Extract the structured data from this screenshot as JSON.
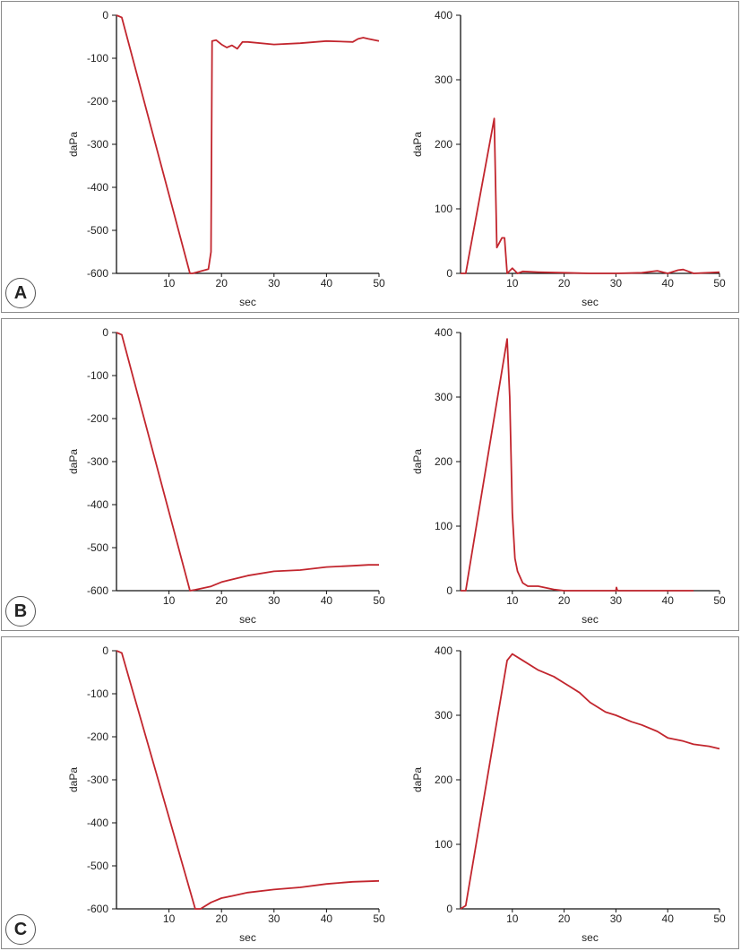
{
  "panels": [
    {
      "id": "a",
      "letter": "A"
    },
    {
      "id": "b",
      "letter": "B"
    },
    {
      "id": "c",
      "letter": "C"
    }
  ],
  "chart_data": [
    {
      "panel": "A",
      "side": "left",
      "type": "line",
      "xlabel": "sec",
      "ylabel": "daPa",
      "xlim": [
        0,
        50
      ],
      "ylim": [
        -600,
        0
      ],
      "xticks": [
        10,
        20,
        30,
        40,
        50
      ],
      "yticks": [
        0,
        -100,
        -200,
        -300,
        -400,
        -500,
        -600
      ],
      "x": [
        0,
        1,
        14,
        14.5,
        17.5,
        18,
        18.2,
        19,
        20,
        21,
        22,
        23,
        24,
        25,
        30,
        35,
        40,
        45,
        46,
        47,
        48,
        50
      ],
      "y": [
        0,
        -5,
        -600,
        -600,
        -590,
        -550,
        -60,
        -58,
        -68,
        -75,
        -70,
        -78,
        -62,
        -62,
        -68,
        -65,
        -60,
        -62,
        -55,
        -52,
        -55,
        -60
      ]
    },
    {
      "panel": "A",
      "side": "right",
      "type": "line",
      "xlabel": "sec",
      "ylabel": "daPa",
      "xlim": [
        0,
        50
      ],
      "ylim": [
        0,
        400
      ],
      "xticks": [
        10,
        20,
        30,
        40,
        50
      ],
      "yticks": [
        0,
        100,
        200,
        300,
        400
      ],
      "x": [
        0,
        1,
        6.5,
        7,
        8,
        8.5,
        9,
        10,
        11,
        12,
        15,
        20,
        25,
        30,
        35,
        38,
        40,
        42,
        43,
        44,
        45,
        50
      ],
      "y": [
        0,
        0,
        240,
        40,
        55,
        55,
        0,
        8,
        0,
        3,
        2,
        1,
        0,
        0,
        1,
        4,
        0,
        5,
        6,
        3,
        0,
        2
      ]
    },
    {
      "panel": "B",
      "side": "left",
      "type": "line",
      "xlabel": "sec",
      "ylabel": "daPa",
      "xlim": [
        0,
        50
      ],
      "ylim": [
        -600,
        0
      ],
      "xticks": [
        10,
        20,
        30,
        40,
        50
      ],
      "yticks": [
        0,
        -100,
        -200,
        -300,
        -400,
        -500,
        -600
      ],
      "x": [
        0,
        1,
        14,
        15,
        18,
        20,
        25,
        30,
        35,
        40,
        45,
        48,
        50
      ],
      "y": [
        0,
        -5,
        -600,
        -598,
        -590,
        -580,
        -565,
        -555,
        -552,
        -545,
        -542,
        -540,
        -540
      ]
    },
    {
      "panel": "B",
      "side": "right",
      "type": "line",
      "xlabel": "sec",
      "ylabel": "daPa",
      "xlim": [
        0,
        50
      ],
      "ylim": [
        0,
        400
      ],
      "xticks": [
        10,
        20,
        30,
        40,
        50
      ],
      "yticks": [
        0,
        100,
        200,
        300,
        400
      ],
      "x": [
        0,
        1,
        9,
        9.5,
        10,
        10.5,
        11,
        12,
        13,
        15,
        18,
        20,
        30,
        30.1,
        30.3,
        40,
        45
      ],
      "y": [
        0,
        0,
        390,
        300,
        120,
        50,
        30,
        12,
        7,
        7,
        2,
        0,
        0,
        5,
        0,
        0,
        0
      ]
    },
    {
      "panel": "C",
      "side": "left",
      "type": "line",
      "xlabel": "sec",
      "ylabel": "daPa",
      "xlim": [
        0,
        50
      ],
      "ylim": [
        -600,
        0
      ],
      "xticks": [
        10,
        20,
        30,
        40,
        50
      ],
      "yticks": [
        0,
        -100,
        -200,
        -300,
        -400,
        -500,
        -600
      ],
      "x": [
        0,
        1,
        15,
        16,
        18,
        20,
        22,
        25,
        30,
        35,
        40,
        45,
        50
      ],
      "y": [
        0,
        -5,
        -600,
        -600,
        -585,
        -575,
        -570,
        -562,
        -555,
        -550,
        -542,
        -537,
        -535
      ]
    },
    {
      "panel": "C",
      "side": "right",
      "type": "line",
      "xlabel": "sec",
      "ylabel": "daPa",
      "xlim": [
        0,
        50
      ],
      "ylim": [
        0,
        400
      ],
      "xticks": [
        10,
        20,
        30,
        40,
        50
      ],
      "yticks": [
        0,
        100,
        200,
        300,
        400
      ],
      "x": [
        0,
        1,
        9,
        10,
        12,
        15,
        18,
        20,
        23,
        25,
        28,
        30,
        33,
        35,
        38,
        39,
        40,
        43,
        45,
        48,
        50
      ],
      "y": [
        0,
        5,
        385,
        395,
        385,
        370,
        360,
        350,
        335,
        320,
        305,
        300,
        290,
        285,
        275,
        270,
        265,
        260,
        255,
        252,
        248
      ]
    }
  ]
}
